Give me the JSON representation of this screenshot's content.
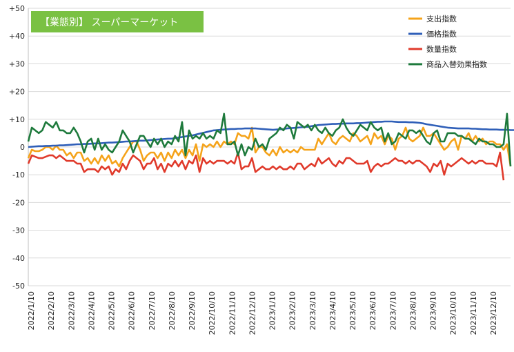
{
  "chart_data": {
    "type": "line",
    "title": "【業態別】 スーパーマーケット",
    "title_bg_color": "#7ac143",
    "xlabel": "",
    "ylabel": "",
    "ylim": [
      -50,
      50
    ],
    "yticks": [
      50,
      40,
      30,
      20,
      10,
      0,
      -10,
      -20,
      -30,
      -40,
      -50
    ],
    "ytick_labels": [
      "+50",
      "+40",
      "+30",
      "+20",
      "+10",
      "0",
      "-10",
      "-20",
      "-30",
      "-40",
      "-50"
    ],
    "xtick_labels": [
      "2022/1/10",
      "2022/2/10",
      "2022/3/10",
      "2022/4/10",
      "2022/5/10",
      "2022/6/10",
      "2022/7/10",
      "2022/8/10",
      "2022/9/10",
      "2022/10/10",
      "2022/11/10",
      "2022/12/10",
      "2023/1/10",
      "2023/2/10",
      "2023/3/10",
      "2023/4/10",
      "2023/5/10",
      "2023/6/10",
      "2023/7/10",
      "2023/8/10",
      "2023/9/10",
      "2023/10/10",
      "2023/11/10",
      "2023/12/10"
    ],
    "grid": true,
    "legend_position": "top-right",
    "series": [
      {
        "name": "支出指数",
        "color": "#f5a31a",
        "values": [
          -4,
          -1,
          -1.5,
          -1.5,
          -1,
          0,
          0,
          -1,
          0.5,
          -1,
          -1,
          -3,
          -2,
          -4,
          -2,
          -2,
          -5,
          -4,
          -6,
          -4,
          -6,
          -3,
          -5,
          -3,
          -6,
          -5,
          -7,
          -4,
          -2,
          0,
          2,
          2,
          -1,
          -5,
          -3,
          -2,
          -2,
          -4,
          -2,
          -5,
          -2,
          -4,
          -1,
          -3,
          -1,
          -4,
          -1,
          -3,
          1,
          -5,
          1,
          0,
          1,
          0,
          2,
          0,
          2,
          1,
          2,
          1,
          5,
          4,
          4,
          3,
          7,
          -2,
          0,
          0,
          -2,
          -3,
          -1,
          -3,
          0,
          -2,
          -1,
          -2,
          -1,
          -2,
          0,
          -1,
          -1,
          -1,
          -1,
          3,
          1,
          3,
          5,
          2,
          1,
          3,
          4,
          3,
          2,
          5,
          4,
          2,
          3,
          4,
          1,
          5,
          3,
          4,
          1,
          4,
          3,
          -1,
          3,
          4,
          7,
          3,
          2,
          3,
          4,
          7,
          4,
          4,
          5,
          3,
          1,
          -1,
          0,
          2,
          3,
          -1,
          4,
          3,
          5,
          2,
          4,
          2,
          3,
          1,
          2,
          2,
          1,
          1,
          -1,
          1,
          -7
        ]
      },
      {
        "name": "価格指数",
        "color": "#2f5fb8",
        "values": [
          0,
          0.1,
          0.2,
          0.3,
          0.3,
          0.4,
          0.4,
          0.5,
          0.5,
          0.6,
          0.6,
          0.7,
          0.8,
          0.9,
          1,
          1,
          1.1,
          1.1,
          1.2,
          1.3,
          1.3,
          1.4,
          1.5,
          1.6,
          1.6,
          1.7,
          1.8,
          1.9,
          2,
          2,
          2.1,
          2.2,
          2.3,
          2.3,
          2.4,
          2.5,
          2.6,
          2.7,
          2.8,
          2.9,
          3,
          3,
          3.2,
          3.4,
          3.6,
          3.8,
          4,
          4.2,
          4.5,
          4.8,
          5.1,
          5.4,
          5.7,
          6,
          6.1,
          6.2,
          6.3,
          6.4,
          6.5,
          6.5,
          6.6,
          6.6,
          6.7,
          6.7,
          6.7,
          6.7,
          6.6,
          6.5,
          6.4,
          6.3,
          6.2,
          6.3,
          6.4,
          6.5,
          6.7,
          6.8,
          6.9,
          7,
          7.1,
          7.2,
          7.3,
          7.5,
          7.7,
          7.9,
          8,
          8.1,
          8.2,
          8.3,
          8.3,
          8.4,
          8.4,
          8.5,
          8.5,
          8.5,
          8.6,
          8.6,
          8.7,
          8.8,
          8.9,
          9,
          9.1,
          9.1,
          9.2,
          9.2,
          9.2,
          9.1,
          9,
          9,
          9,
          8.9,
          8.9,
          8.8,
          8.7,
          8.5,
          8.2,
          8,
          7.8,
          7.6,
          7.4,
          7.2,
          7,
          6.9,
          6.8,
          6.7,
          6.7,
          6.7,
          6.7,
          6.6,
          6.6,
          6.5,
          6.4,
          6.4,
          6.3,
          6.3,
          6.3,
          6.2,
          6.2,
          6.2,
          6.1,
          6.1,
          6.1,
          6.1,
          6.1,
          6.1,
          6.1
        ]
      },
      {
        "name": "数量指数",
        "color": "#e03a2b",
        "values": [
          -6,
          -3,
          -3.5,
          -4,
          -4,
          -3.5,
          -3,
          -3,
          -4,
          -3,
          -4,
          -5,
          -5,
          -5,
          -6,
          -6,
          -9,
          -8,
          -8,
          -8,
          -9,
          -7,
          -8,
          -7,
          -10,
          -8,
          -9,
          -6,
          -8,
          -5,
          -3,
          -4,
          -5,
          -8,
          -6,
          -6,
          -4,
          -8,
          -6,
          -9,
          -6,
          -7,
          -5,
          -7,
          -5,
          -8,
          -5,
          -6,
          -3,
          -9,
          -4,
          -6,
          -5,
          -6,
          -5,
          -5,
          -5,
          -6,
          -5,
          -6,
          -2,
          -8,
          -7,
          -7,
          -4,
          -9,
          -8,
          -7,
          -8,
          -8,
          -7,
          -8,
          -7,
          -8,
          -8,
          -7,
          -8,
          -6,
          -6,
          -8,
          -7,
          -6,
          -7,
          -4,
          -6,
          -5,
          -4,
          -6,
          -7,
          -5,
          -6,
          -4,
          -4,
          -5,
          -6,
          -6,
          -6,
          -5,
          -9,
          -7,
          -6,
          -7,
          -6,
          -6,
          -5,
          -4,
          -5,
          -5,
          -6,
          -5,
          -6,
          -5,
          -5,
          -6,
          -7,
          -9,
          -6,
          -7,
          -5,
          -10,
          -6,
          -7,
          -6,
          -5,
          -4,
          -5,
          -6,
          -5,
          -6,
          -5,
          -5,
          -6,
          -6,
          -6,
          -7,
          -2,
          -12
        ]
      },
      {
        "name": "商品入替効果指数",
        "color": "#1e7a3c",
        "values": [
          2,
          7,
          6,
          5,
          6,
          9,
          8,
          7,
          9,
          6,
          6,
          5,
          5,
          7,
          5,
          2,
          -2,
          2,
          3,
          -1,
          3,
          -1,
          1,
          -1,
          -2,
          0,
          2,
          6,
          4,
          2,
          -2,
          1,
          4,
          4,
          2,
          0,
          3,
          1,
          3,
          0,
          2,
          1,
          4,
          2,
          9,
          -3,
          6,
          3,
          4,
          3,
          5,
          3,
          4,
          3,
          6,
          5,
          12,
          1,
          1,
          2,
          -3,
          1,
          -3,
          0,
          -1,
          3,
          0,
          1,
          -1,
          3,
          4,
          5,
          7,
          6,
          8,
          7,
          3,
          9,
          8,
          7,
          8,
          6,
          8,
          6,
          5,
          7,
          5,
          4,
          6,
          7,
          10,
          7,
          5,
          4,
          6,
          8,
          7,
          6,
          9,
          7,
          6,
          7,
          2,
          5,
          1,
          2,
          5,
          4,
          3,
          6,
          6,
          5,
          6,
          4,
          2,
          1,
          5,
          6,
          2,
          2,
          5,
          5,
          5,
          4,
          4,
          3,
          3,
          2,
          1,
          3,
          2,
          2,
          1,
          1,
          0,
          0,
          1,
          12,
          -7
        ]
      }
    ]
  }
}
